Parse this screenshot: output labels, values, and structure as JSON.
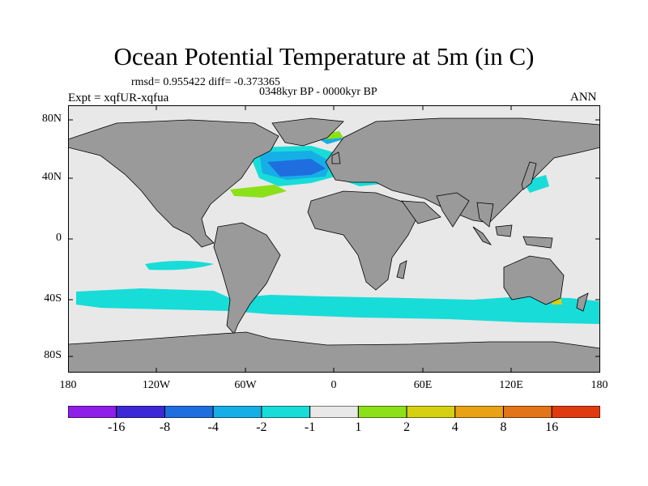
{
  "title": "Ocean Potential Temperature at 5m (in C)",
  "stats_text": "rmsd= 0.955422 diff= -0.373365",
  "period_text": "0348kyr BP - 0000kyr BP",
  "experiment_text": "Expt = xqfUR-xqfua",
  "season_text": "ANN",
  "lat_labels": [
    "80N",
    "40N",
    "0",
    "40S",
    "80S"
  ],
  "lon_labels": [
    "180",
    "120W",
    "60W",
    "0",
    "60E",
    "120E",
    "180"
  ],
  "colorbar": {
    "colors": [
      "#8f1ee8",
      "#3c28d6",
      "#1f6ee0",
      "#16aee6",
      "#18dcd8",
      "#e8e8e8",
      "#8ce018",
      "#d6d012",
      "#e8a214",
      "#e47418",
      "#e03a10"
    ],
    "labels": [
      "-16",
      "-8",
      "-4",
      "-2",
      "-1",
      "1",
      "2",
      "4",
      "8",
      "16"
    ]
  },
  "colors": {
    "land": "#9a9a9a",
    "ocean_neutral": "#e8e8e8",
    "ocean_cool": "#18dcd8",
    "ocean_blue": "#16aee6",
    "ocean_deep_blue": "#1f6ee0",
    "warm_green": "#8ce018",
    "warm_yellow": "#d6d012"
  }
}
